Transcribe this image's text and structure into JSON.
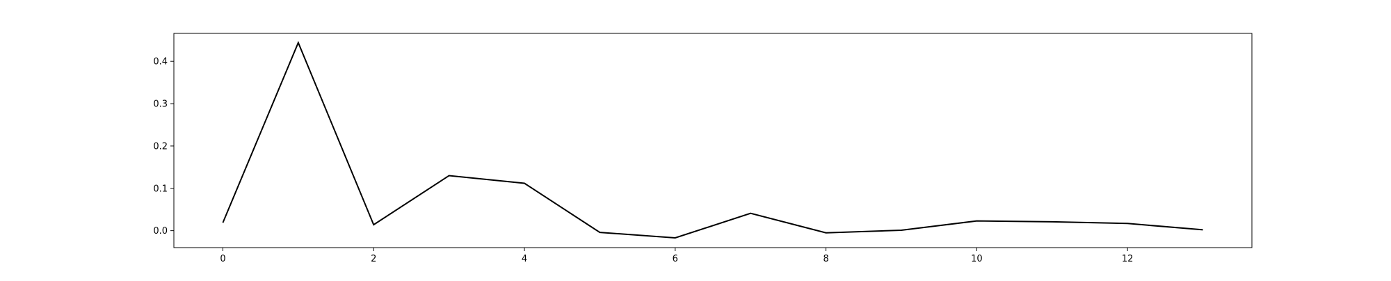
{
  "chart_data": {
    "type": "line",
    "title": "",
    "xlabel": "",
    "ylabel": "",
    "x": [
      0,
      1,
      2,
      3,
      4,
      5,
      6,
      7,
      8,
      9,
      10,
      11,
      12,
      13
    ],
    "series": [
      {
        "values": [
          0.019,
          0.444,
          0.014,
          0.13,
          0.112,
          -0.004,
          -0.017,
          0.041,
          -0.005,
          0.001,
          0.023,
          0.021,
          0.017,
          0.002
        ],
        "color": "#000000"
      }
    ],
    "xlim": [
      -0.65,
      13.65
    ],
    "ylim": [
      -0.04,
      0.466
    ],
    "xticks": [
      0,
      2,
      4,
      6,
      8,
      10,
      12
    ],
    "xtick_labels": [
      "0",
      "2",
      "4",
      "6",
      "8",
      "10",
      "12"
    ],
    "yticks": [
      0.0,
      0.1,
      0.2,
      0.3,
      0.4
    ],
    "ytick_labels": [
      "0.0",
      "0.1",
      "0.2",
      "0.3",
      "0.4"
    ],
    "grid": false,
    "legend": false
  }
}
